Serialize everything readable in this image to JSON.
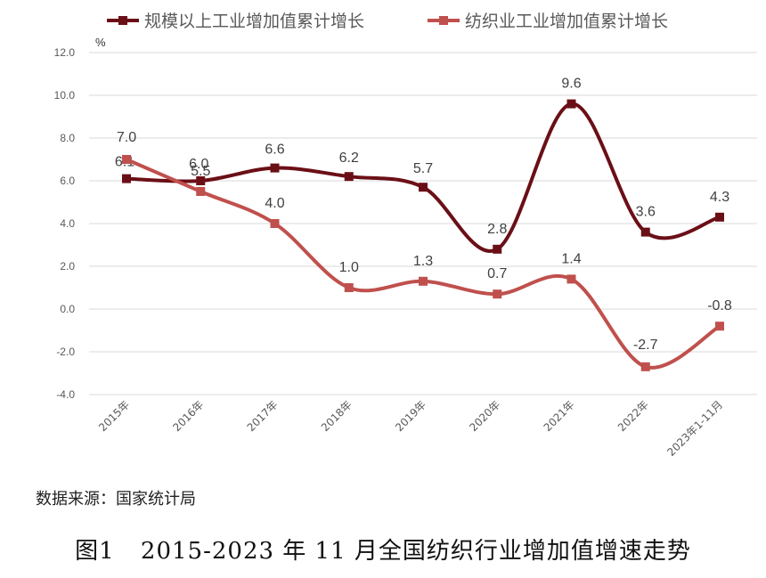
{
  "chart_data": {
    "type": "line",
    "categories": [
      "2015年",
      "2016年",
      "2017年",
      "2018年",
      "2019年",
      "2020年",
      "2021年",
      "2022年",
      "2023年1-11月"
    ],
    "series": [
      {
        "name": "规模以上工业增加值累计增长",
        "color": "#6b0f16",
        "values": [
          6.1,
          6.0,
          6.6,
          6.2,
          5.7,
          2.8,
          9.6,
          3.6,
          4.3
        ]
      },
      {
        "name": "纺织业工业增加值累计增长",
        "color": "#c0504d",
        "values": [
          7.0,
          5.5,
          4.0,
          1.0,
          1.3,
          0.7,
          1.4,
          -2.7,
          -0.8
        ]
      }
    ],
    "data_labels": {
      "s0": [
        "6.1",
        "6.0",
        "6.6",
        "6.2",
        "5.7",
        "2.8",
        "9.6",
        "3.6",
        "4.3"
      ],
      "s1": [
        "7.0",
        "5.5",
        "4.0",
        "1.0",
        "1.3",
        "0.7",
        "1.4",
        "-2.7",
        "-0.8"
      ]
    },
    "ylabel": "%",
    "ylim": [
      -4.0,
      12.0
    ],
    "yticks": [
      "12.0",
      "10.0",
      "8.0",
      "6.0",
      "4.0",
      "2.0",
      "0.0",
      "-2.0",
      "-4.0"
    ],
    "grid": true,
    "legend_position": "top"
  },
  "source": "数据来源：国家统计局",
  "caption": {
    "figure": "图1",
    "text": "2015-2023 年 11 月全国纺织行业增加值增速走势"
  }
}
